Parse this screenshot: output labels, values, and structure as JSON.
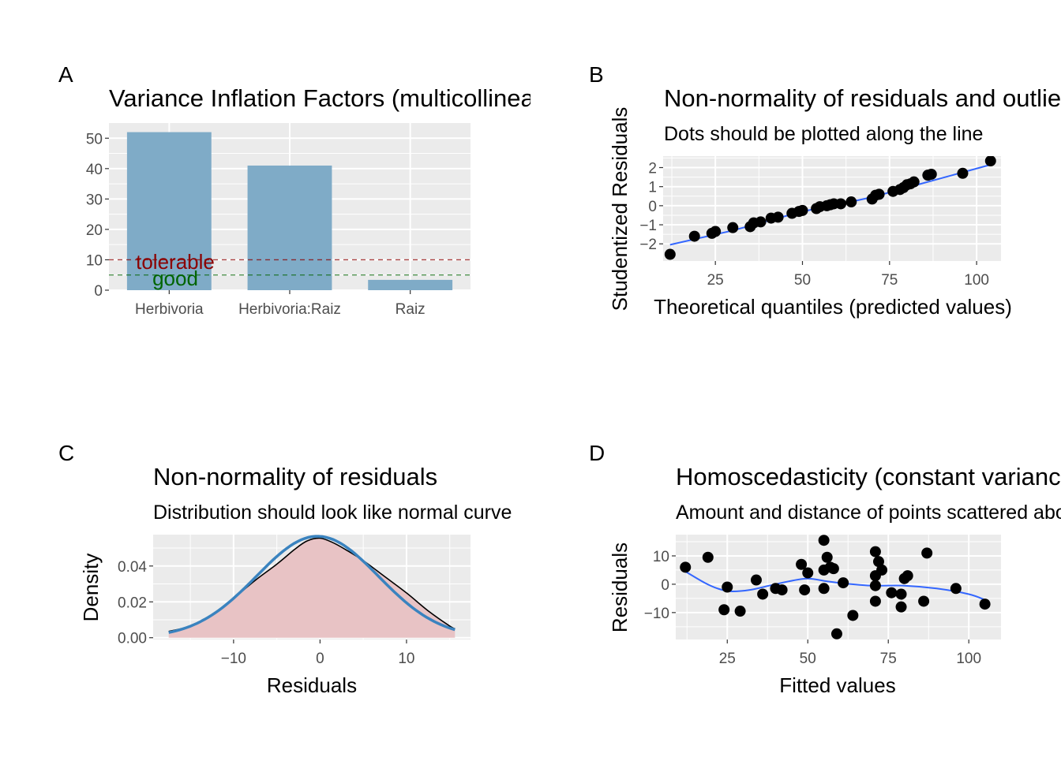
{
  "panels": {
    "A": {
      "tag": "A",
      "title": "Variance Inflation Factors (multicollinearity)",
      "bar_color": "#7fabc7",
      "tolerable_label": "tolerable",
      "good_label": "good",
      "tolerable_color": "#8b0000",
      "good_color": "#006400"
    },
    "B": {
      "tag": "B",
      "title": "Non-normality of residuals and outliers",
      "subtitle": "Dots should be plotted along the line"
    },
    "C": {
      "tag": "C",
      "title": "Non-normality of residuals",
      "subtitle": "Distribution should look like normal curve",
      "fill_color": "#e8c3c5",
      "normal_curve_color": "#3a83bf"
    },
    "D": {
      "tag": "D",
      "title": "Homoscedasticity (constant variance of residuals)",
      "subtitle": "Amount and distance of points scattered above/below line is equal or randomly spread"
    }
  },
  "chart_data": [
    {
      "panel": "A",
      "type": "bar",
      "title": "Variance Inflation Factors (multicollinearity)",
      "categories": [
        "Herbivoria",
        "Herbivoria:Raiz",
        "Raiz"
      ],
      "values": [
        52,
        41,
        3.4
      ],
      "ylim": [
        0,
        55
      ],
      "yticks": [
        0,
        10,
        20,
        30,
        40,
        50
      ],
      "reference_lines": [
        {
          "label": "tolerable",
          "y": 10
        },
        {
          "label": "good",
          "y": 5
        }
      ],
      "xlabel": "",
      "ylabel": "",
      "grid": true
    },
    {
      "panel": "B",
      "type": "scatter",
      "title": "Non-normality of residuals and outliers",
      "subtitle": "Dots should be plotted along the line",
      "xlabel": "Theoretical quantiles (predicted values)",
      "ylabel": "Studentized Residuals",
      "xlim": [
        10,
        107
      ],
      "ylim": [
        -2.9,
        2.6
      ],
      "xticks": [
        25,
        50,
        75,
        100
      ],
      "yticks": [
        -2,
        -1,
        0,
        1,
        2
      ],
      "points": [
        [
          12,
          -2.55
        ],
        [
          19,
          -1.6
        ],
        [
          24,
          -1.45
        ],
        [
          25,
          -1.35
        ],
        [
          30,
          -1.15
        ],
        [
          35,
          -1.1
        ],
        [
          36,
          -0.9
        ],
        [
          38,
          -0.85
        ],
        [
          41,
          -0.65
        ],
        [
          43,
          -0.6
        ],
        [
          47,
          -0.4
        ],
        [
          49,
          -0.3
        ],
        [
          50,
          -0.25
        ],
        [
          54,
          -0.15
        ],
        [
          55,
          -0.05
        ],
        [
          57,
          0.0
        ],
        [
          58,
          0.05
        ],
        [
          59,
          0.1
        ],
        [
          61,
          0.1
        ],
        [
          64,
          0.2
        ],
        [
          70,
          0.35
        ],
        [
          71,
          0.55
        ],
        [
          72,
          0.6
        ],
        [
          76,
          0.75
        ],
        [
          78,
          0.85
        ],
        [
          79,
          0.95
        ],
        [
          80,
          1.1
        ],
        [
          81,
          1.15
        ],
        [
          82,
          1.25
        ],
        [
          86,
          1.6
        ],
        [
          87,
          1.65
        ],
        [
          96,
          1.7
        ],
        [
          104,
          2.35
        ]
      ],
      "fit_line": [
        [
          12,
          -2.05
        ],
        [
          30,
          -1.3
        ],
        [
          50,
          -0.3
        ],
        [
          60,
          0.05
        ],
        [
          70,
          0.45
        ],
        [
          80,
          0.95
        ],
        [
          90,
          1.45
        ],
        [
          104,
          2.15
        ]
      ],
      "grid": true
    },
    {
      "panel": "C",
      "type": "area",
      "title": "Non-normality of residuals",
      "subtitle": "Distribution should look like normal curve",
      "xlabel": "Residuals",
      "ylabel": "Density",
      "xlim": [
        -19.3,
        17.4
      ],
      "ylim": [
        -0.001,
        0.0575
      ],
      "xticks": [
        -10,
        0,
        10
      ],
      "yticks": [
        0.0,
        0.02,
        0.04
      ],
      "ytick_labels": [
        "0.00",
        "0.02",
        "0.04"
      ],
      "density": [
        [
          -17.5,
          0.0035
        ],
        [
          -15,
          0.0065
        ],
        [
          -12.5,
          0.013
        ],
        [
          -10,
          0.022
        ],
        [
          -7.5,
          0.032
        ],
        [
          -5,
          0.041
        ],
        [
          -3,
          0.049
        ],
        [
          -1.5,
          0.054
        ],
        [
          0,
          0.0555
        ],
        [
          1.5,
          0.053
        ],
        [
          3,
          0.049
        ],
        [
          5,
          0.043
        ],
        [
          7.5,
          0.034
        ],
        [
          10,
          0.025
        ],
        [
          12.5,
          0.015
        ],
        [
          15,
          0.0065
        ],
        [
          15.6,
          0.005
        ]
      ],
      "normal_mean": -0.3,
      "normal_sd": 7.05,
      "normal_range": [
        -17.5,
        15.6
      ],
      "grid": true
    },
    {
      "panel": "D",
      "type": "scatter",
      "title": "Homoscedasticity (constant variance of residuals)",
      "subtitle": "Amount and distance of points scattered above/below line is equal or randomly spread",
      "xlabel": "Fitted values",
      "ylabel": "Residuals",
      "xlim": [
        9,
        110
      ],
      "ylim": [
        -19.5,
        17.5
      ],
      "xticks": [
        25,
        50,
        75,
        100
      ],
      "yticks": [
        -10,
        0,
        10
      ],
      "points": [
        [
          12,
          6
        ],
        [
          19,
          9.5
        ],
        [
          24,
          -9
        ],
        [
          25,
          -1
        ],
        [
          29,
          -9.5
        ],
        [
          34,
          1.5
        ],
        [
          36,
          -3.5
        ],
        [
          40,
          -1.5
        ],
        [
          42,
          -2
        ],
        [
          48,
          7
        ],
        [
          49,
          -2
        ],
        [
          50,
          4
        ],
        [
          55,
          15.5
        ],
        [
          55,
          5
        ],
        [
          56,
          9.5
        ],
        [
          55,
          -1.5
        ],
        [
          57,
          6
        ],
        [
          58,
          5.5
        ],
        [
          59,
          -17.5
        ],
        [
          61,
          0.5
        ],
        [
          64,
          -11
        ],
        [
          71,
          -6
        ],
        [
          71,
          11.5
        ],
        [
          71,
          3
        ],
        [
          71,
          -0.5
        ],
        [
          72,
          8
        ],
        [
          73,
          5
        ],
        [
          76,
          -3
        ],
        [
          79,
          -8
        ],
        [
          79,
          -3.5
        ],
        [
          80,
          2
        ],
        [
          81,
          3
        ],
        [
          86,
          -6
        ],
        [
          87,
          11
        ],
        [
          96,
          -1.5
        ],
        [
          105,
          -7
        ]
      ],
      "fit_line": [
        [
          12,
          4.5
        ],
        [
          18,
          0.5
        ],
        [
          22,
          -1.5
        ],
        [
          26,
          -2.5
        ],
        [
          32,
          -2.0
        ],
        [
          38,
          -0.5
        ],
        [
          44,
          1.0
        ],
        [
          50,
          2.0
        ],
        [
          56,
          1.0
        ],
        [
          62,
          0.2
        ],
        [
          70,
          -0.5
        ],
        [
          80,
          -0.5
        ],
        [
          90,
          -1.5
        ],
        [
          100,
          -3.5
        ],
        [
          105,
          -5.5
        ]
      ],
      "grid": true
    }
  ]
}
